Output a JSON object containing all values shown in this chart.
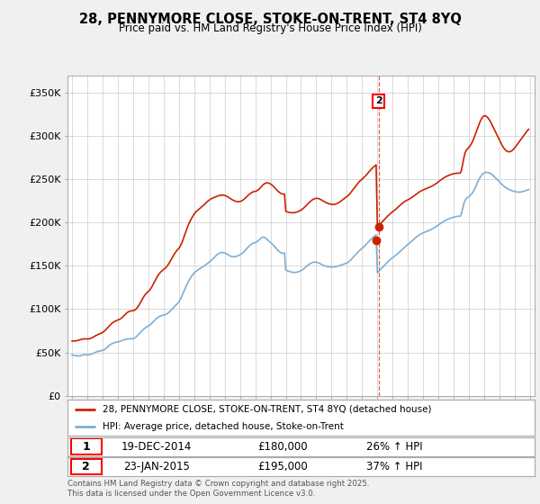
{
  "title": "28, PENNYMORE CLOSE, STOKE-ON-TRENT, ST4 8YQ",
  "subtitle": "Price paid vs. HM Land Registry's House Price Index (HPI)",
  "background_color": "#f0f0f0",
  "plot_bg_color": "#ffffff",
  "grid_color": "#cccccc",
  "hpi_color": "#7eaed4",
  "price_color": "#cc2200",
  "marker_color": "#cc2200",
  "dashed_color": "#cc2200",
  "ylim": [
    0,
    370000
  ],
  "yticks": [
    0,
    50000,
    100000,
    150000,
    200000,
    250000,
    300000,
    350000
  ],
  "ytick_labels": [
    "£0",
    "£50K",
    "£100K",
    "£150K",
    "£200K",
    "£250K",
    "£300K",
    "£350K"
  ],
  "transaction1": {
    "date": "19-DEC-2014",
    "price": 180000,
    "hpi_pct": "26%",
    "label": "1"
  },
  "transaction2": {
    "date": "23-JAN-2015",
    "price": 195000,
    "hpi_pct": "37%",
    "label": "2"
  },
  "legend_entry1": "28, PENNYMORE CLOSE, STOKE-ON-TRENT, ST4 8YQ (detached house)",
  "legend_entry2": "HPI: Average price, detached house, Stoke-on-Trent",
  "footer": "Contains HM Land Registry data © Crown copyright and database right 2025.\nThis data is licensed under the Open Government Licence v3.0.",
  "hpi_data_x": [
    1995.0,
    1995.083,
    1995.167,
    1995.25,
    1995.333,
    1995.417,
    1995.5,
    1995.583,
    1995.667,
    1995.75,
    1995.833,
    1995.917,
    1996.0,
    1996.083,
    1996.167,
    1996.25,
    1996.333,
    1996.417,
    1996.5,
    1996.583,
    1996.667,
    1996.75,
    1996.833,
    1996.917,
    1997.0,
    1997.083,
    1997.167,
    1997.25,
    1997.333,
    1997.417,
    1997.5,
    1997.583,
    1997.667,
    1997.75,
    1997.833,
    1997.917,
    1998.0,
    1998.083,
    1998.167,
    1998.25,
    1998.333,
    1998.417,
    1998.5,
    1998.583,
    1998.667,
    1998.75,
    1998.833,
    1998.917,
    1999.0,
    1999.083,
    1999.167,
    1999.25,
    1999.333,
    1999.417,
    1999.5,
    1999.583,
    1999.667,
    1999.75,
    1999.833,
    1999.917,
    2000.0,
    2000.083,
    2000.167,
    2000.25,
    2000.333,
    2000.417,
    2000.5,
    2000.583,
    2000.667,
    2000.75,
    2000.833,
    2000.917,
    2001.0,
    2001.083,
    2001.167,
    2001.25,
    2001.333,
    2001.417,
    2001.5,
    2001.583,
    2001.667,
    2001.75,
    2001.833,
    2001.917,
    2002.0,
    2002.083,
    2002.167,
    2002.25,
    2002.333,
    2002.417,
    2002.5,
    2002.583,
    2002.667,
    2002.75,
    2002.833,
    2002.917,
    2003.0,
    2003.083,
    2003.167,
    2003.25,
    2003.333,
    2003.417,
    2003.5,
    2003.583,
    2003.667,
    2003.75,
    2003.833,
    2003.917,
    2004.0,
    2004.083,
    2004.167,
    2004.25,
    2004.333,
    2004.417,
    2004.5,
    2004.583,
    2004.667,
    2004.75,
    2004.833,
    2004.917,
    2005.0,
    2005.083,
    2005.167,
    2005.25,
    2005.333,
    2005.417,
    2005.5,
    2005.583,
    2005.667,
    2005.75,
    2005.833,
    2005.917,
    2006.0,
    2006.083,
    2006.167,
    2006.25,
    2006.333,
    2006.417,
    2006.5,
    2006.583,
    2006.667,
    2006.75,
    2006.833,
    2006.917,
    2007.0,
    2007.083,
    2007.167,
    2007.25,
    2007.333,
    2007.417,
    2007.5,
    2007.583,
    2007.667,
    2007.75,
    2007.833,
    2007.917,
    2008.0,
    2008.083,
    2008.167,
    2008.25,
    2008.333,
    2008.417,
    2008.5,
    2008.583,
    2008.667,
    2008.75,
    2008.833,
    2008.917,
    2009.0,
    2009.083,
    2009.167,
    2009.25,
    2009.333,
    2009.417,
    2009.5,
    2009.583,
    2009.667,
    2009.75,
    2009.833,
    2009.917,
    2010.0,
    2010.083,
    2010.167,
    2010.25,
    2010.333,
    2010.417,
    2010.5,
    2010.583,
    2010.667,
    2010.75,
    2010.833,
    2010.917,
    2011.0,
    2011.083,
    2011.167,
    2011.25,
    2011.333,
    2011.417,
    2011.5,
    2011.583,
    2011.667,
    2011.75,
    2011.833,
    2011.917,
    2012.0,
    2012.083,
    2012.167,
    2012.25,
    2012.333,
    2012.417,
    2012.5,
    2012.583,
    2012.667,
    2012.75,
    2012.833,
    2012.917,
    2013.0,
    2013.083,
    2013.167,
    2013.25,
    2013.333,
    2013.417,
    2013.5,
    2013.583,
    2013.667,
    2013.75,
    2013.833,
    2013.917,
    2014.0,
    2014.083,
    2014.167,
    2014.25,
    2014.333,
    2014.417,
    2014.5,
    2014.583,
    2014.667,
    2014.75,
    2014.833,
    2014.917,
    2015.0,
    2015.083,
    2015.167,
    2015.25,
    2015.333,
    2015.417,
    2015.5,
    2015.583,
    2015.667,
    2015.75,
    2015.833,
    2015.917,
    2016.0,
    2016.083,
    2016.167,
    2016.25,
    2016.333,
    2016.417,
    2016.5,
    2016.583,
    2016.667,
    2016.75,
    2016.833,
    2016.917,
    2017.0,
    2017.083,
    2017.167,
    2017.25,
    2017.333,
    2017.417,
    2017.5,
    2017.583,
    2017.667,
    2017.75,
    2017.833,
    2017.917,
    2018.0,
    2018.083,
    2018.167,
    2018.25,
    2018.333,
    2018.417,
    2018.5,
    2018.583,
    2018.667,
    2018.75,
    2018.833,
    2018.917,
    2019.0,
    2019.083,
    2019.167,
    2019.25,
    2019.333,
    2019.417,
    2019.5,
    2019.583,
    2019.667,
    2019.75,
    2019.833,
    2019.917,
    2020.0,
    2020.083,
    2020.167,
    2020.25,
    2020.333,
    2020.417,
    2020.5,
    2020.583,
    2020.667,
    2020.75,
    2020.833,
    2020.917,
    2021.0,
    2021.083,
    2021.167,
    2021.25,
    2021.333,
    2021.417,
    2021.5,
    2021.583,
    2021.667,
    2021.75,
    2021.833,
    2021.917,
    2022.0,
    2022.083,
    2022.167,
    2022.25,
    2022.333,
    2022.417,
    2022.5,
    2022.583,
    2022.667,
    2022.75,
    2022.833,
    2022.917,
    2023.0,
    2023.083,
    2023.167,
    2023.25,
    2023.333,
    2023.417,
    2023.5,
    2023.583,
    2023.667,
    2023.75,
    2023.833,
    2023.917,
    2024.0,
    2024.083,
    2024.167,
    2024.25,
    2024.333,
    2024.417,
    2024.5,
    2024.583,
    2024.667,
    2024.75,
    2024.833,
    2024.917
  ],
  "hpi_data_y": [
    47200,
    46800,
    46300,
    46100,
    46000,
    45900,
    46100,
    46400,
    46800,
    47200,
    47600,
    47300,
    47000,
    47200,
    47500,
    48000,
    48500,
    49100,
    49800,
    50500,
    51000,
    51400,
    51700,
    51900,
    52200,
    52900,
    53800,
    55000,
    56300,
    57800,
    58900,
    59800,
    60500,
    61100,
    61500,
    61800,
    62100,
    62500,
    63000,
    63600,
    64200,
    64700,
    65100,
    65400,
    65600,
    65700,
    65800,
    65800,
    65900,
    66500,
    67500,
    68900,
    70400,
    72000,
    73600,
    75100,
    76500,
    77800,
    78900,
    79800,
    80500,
    81500,
    82700,
    84200,
    85800,
    87300,
    88700,
    89900,
    90900,
    91700,
    92300,
    92700,
    93000,
    93400,
    94000,
    95000,
    96200,
    97600,
    99100,
    100700,
    102200,
    103700,
    105200,
    106800,
    108500,
    111000,
    114000,
    117500,
    121000,
    124500,
    127800,
    130800,
    133500,
    136000,
    138200,
    140100,
    141700,
    143100,
    144300,
    145400,
    146400,
    147300,
    148200,
    149100,
    150100,
    151200,
    152300,
    153400,
    154500,
    155800,
    157200,
    158700,
    160200,
    161600,
    163000,
    164100,
    164900,
    165400,
    165600,
    165400,
    165000,
    164300,
    163500,
    162500,
    161600,
    161000,
    160600,
    160500,
    160600,
    161000,
    161500,
    162100,
    162800,
    163700,
    164900,
    166300,
    167900,
    169600,
    171200,
    172700,
    174000,
    175100,
    176000,
    176600,
    177000,
    177700,
    178700,
    180000,
    181500,
    182700,
    183300,
    183200,
    182400,
    181100,
    179600,
    178200,
    177000,
    175700,
    174300,
    172700,
    171000,
    169300,
    167700,
    166300,
    165300,
    164700,
    164600,
    165000,
    145000,
    144500,
    144000,
    143500,
    143000,
    142700,
    142500,
    142400,
    142500,
    142800,
    143200,
    143800,
    144500,
    145400,
    146500,
    147800,
    149100,
    150300,
    151500,
    152500,
    153300,
    153900,
    154300,
    154400,
    154300,
    153900,
    153300,
    152500,
    151700,
    151000,
    150400,
    149900,
    149500,
    149200,
    149000,
    148800,
    148700,
    148700,
    148800,
    149000,
    149300,
    149700,
    150200,
    150700,
    151200,
    151700,
    152200,
    152700,
    153300,
    154200,
    155400,
    156800,
    158400,
    160000,
    161700,
    163300,
    164900,
    166400,
    167800,
    169100,
    170300,
    171600,
    173000,
    174600,
    176200,
    177800,
    179400,
    180900,
    182300,
    183600,
    184800,
    185900,
    142000,
    143500,
    145000,
    146600,
    148200,
    149800,
    151400,
    153000,
    154500,
    155900,
    157200,
    158400,
    159500,
    160600,
    161700,
    162900,
    164100,
    165400,
    166800,
    168200,
    169600,
    171000,
    172300,
    173600,
    174800,
    176100,
    177400,
    178700,
    180000,
    181300,
    182500,
    183700,
    184800,
    185800,
    186700,
    187500,
    188200,
    188800,
    189400,
    190000,
    190600,
    191200,
    191900,
    192600,
    193400,
    194300,
    195300,
    196300,
    197400,
    198500,
    199500,
    200500,
    201400,
    202200,
    203000,
    203700,
    204300,
    204900,
    205400,
    205900,
    206400,
    206800,
    207100,
    207300,
    207400,
    207400,
    210000,
    216000,
    222000,
    226000,
    228000,
    229000,
    230000,
    231500,
    233000,
    235000,
    237500,
    240500,
    244000,
    247500,
    250500,
    253000,
    255000,
    256500,
    257500,
    258000,
    258200,
    258000,
    257500,
    256800,
    255800,
    254500,
    253000,
    251500,
    250000,
    248500,
    247000,
    245500,
    244000,
    242700,
    241500,
    240400,
    239500,
    238700,
    238000,
    237400,
    236800,
    236300,
    235900,
    235600,
    235400,
    235300,
    235300,
    235500,
    235800,
    236200,
    236700,
    237200,
    237700,
    238200
  ],
  "price_data_x": [
    1995.0,
    1995.083,
    1995.167,
    1995.25,
    1995.333,
    1995.417,
    1995.5,
    1995.583,
    1995.667,
    1995.75,
    1995.833,
    1995.917,
    1996.0,
    1996.083,
    1996.167,
    1996.25,
    1996.333,
    1996.417,
    1996.5,
    1996.583,
    1996.667,
    1996.75,
    1996.833,
    1996.917,
    1997.0,
    1997.083,
    1997.167,
    1997.25,
    1997.333,
    1997.417,
    1997.5,
    1997.583,
    1997.667,
    1997.75,
    1997.833,
    1997.917,
    1998.0,
    1998.083,
    1998.167,
    1998.25,
    1998.333,
    1998.417,
    1998.5,
    1998.583,
    1998.667,
    1998.75,
    1998.833,
    1998.917,
    1999.0,
    1999.083,
    1999.167,
    1999.25,
    1999.333,
    1999.417,
    1999.5,
    1999.583,
    1999.667,
    1999.75,
    1999.833,
    1999.917,
    2000.0,
    2000.083,
    2000.167,
    2000.25,
    2000.333,
    2000.417,
    2000.5,
    2000.583,
    2000.667,
    2000.75,
    2000.833,
    2000.917,
    2001.0,
    2001.083,
    2001.167,
    2001.25,
    2001.333,
    2001.417,
    2001.5,
    2001.583,
    2001.667,
    2001.75,
    2001.833,
    2001.917,
    2002.0,
    2002.083,
    2002.167,
    2002.25,
    2002.333,
    2002.417,
    2002.5,
    2002.583,
    2002.667,
    2002.75,
    2002.833,
    2002.917,
    2003.0,
    2003.083,
    2003.167,
    2003.25,
    2003.333,
    2003.417,
    2003.5,
    2003.583,
    2003.667,
    2003.75,
    2003.833,
    2003.917,
    2004.0,
    2004.083,
    2004.167,
    2004.25,
    2004.333,
    2004.417,
    2004.5,
    2004.583,
    2004.667,
    2004.75,
    2004.833,
    2004.917,
    2005.0,
    2005.083,
    2005.167,
    2005.25,
    2005.333,
    2005.417,
    2005.5,
    2005.583,
    2005.667,
    2005.75,
    2005.833,
    2005.917,
    2006.0,
    2006.083,
    2006.167,
    2006.25,
    2006.333,
    2006.417,
    2006.5,
    2006.583,
    2006.667,
    2006.75,
    2006.833,
    2006.917,
    2007.0,
    2007.083,
    2007.167,
    2007.25,
    2007.333,
    2007.417,
    2007.5,
    2007.583,
    2007.667,
    2007.75,
    2007.833,
    2007.917,
    2008.0,
    2008.083,
    2008.167,
    2008.25,
    2008.333,
    2008.417,
    2008.5,
    2008.583,
    2008.667,
    2008.75,
    2008.833,
    2008.917,
    2009.0,
    2009.083,
    2009.167,
    2009.25,
    2009.333,
    2009.417,
    2009.5,
    2009.583,
    2009.667,
    2009.75,
    2009.833,
    2009.917,
    2010.0,
    2010.083,
    2010.167,
    2010.25,
    2010.333,
    2010.417,
    2010.5,
    2010.583,
    2010.667,
    2010.75,
    2010.833,
    2010.917,
    2011.0,
    2011.083,
    2011.167,
    2011.25,
    2011.333,
    2011.417,
    2011.5,
    2011.583,
    2011.667,
    2011.75,
    2011.833,
    2011.917,
    2012.0,
    2012.083,
    2012.167,
    2012.25,
    2012.333,
    2012.417,
    2012.5,
    2012.583,
    2012.667,
    2012.75,
    2012.833,
    2012.917,
    2013.0,
    2013.083,
    2013.167,
    2013.25,
    2013.333,
    2013.417,
    2013.5,
    2013.583,
    2013.667,
    2013.75,
    2013.833,
    2013.917,
    2014.0,
    2014.083,
    2014.167,
    2014.25,
    2014.333,
    2014.417,
    2014.5,
    2014.583,
    2014.667,
    2014.75,
    2014.833,
    2014.917,
    2015.0,
    2015.083,
    2015.167,
    2015.25,
    2015.333,
    2015.417,
    2015.5,
    2015.583,
    2015.667,
    2015.75,
    2015.833,
    2015.917,
    2016.0,
    2016.083,
    2016.167,
    2016.25,
    2016.333,
    2016.417,
    2016.5,
    2016.583,
    2016.667,
    2016.75,
    2016.833,
    2016.917,
    2017.0,
    2017.083,
    2017.167,
    2017.25,
    2017.333,
    2017.417,
    2017.5,
    2017.583,
    2017.667,
    2017.75,
    2017.833,
    2017.917,
    2018.0,
    2018.083,
    2018.167,
    2018.25,
    2018.333,
    2018.417,
    2018.5,
    2018.583,
    2018.667,
    2018.75,
    2018.833,
    2018.917,
    2019.0,
    2019.083,
    2019.167,
    2019.25,
    2019.333,
    2019.417,
    2019.5,
    2019.583,
    2019.667,
    2019.75,
    2019.833,
    2019.917,
    2020.0,
    2020.083,
    2020.167,
    2020.25,
    2020.333,
    2020.417,
    2020.5,
    2020.583,
    2020.667,
    2020.75,
    2020.833,
    2020.917,
    2021.0,
    2021.083,
    2021.167,
    2021.25,
    2021.333,
    2021.417,
    2021.5,
    2021.583,
    2021.667,
    2021.75,
    2021.833,
    2021.917,
    2022.0,
    2022.083,
    2022.167,
    2022.25,
    2022.333,
    2022.417,
    2022.5,
    2022.583,
    2022.667,
    2022.75,
    2022.833,
    2022.917,
    2023.0,
    2023.083,
    2023.167,
    2023.25,
    2023.333,
    2023.417,
    2023.5,
    2023.583,
    2023.667,
    2023.75,
    2023.833,
    2023.917,
    2024.0,
    2024.083,
    2024.167,
    2024.25,
    2024.333,
    2024.417,
    2024.5,
    2024.583,
    2024.667,
    2024.75,
    2024.833,
    2024.917
  ],
  "price_data_y": [
    63000,
    63200,
    63100,
    63300,
    63700,
    64000,
    64500,
    65000,
    65300,
    65500,
    65700,
    65600,
    65500,
    65600,
    65900,
    66400,
    67100,
    68000,
    68900,
    69700,
    70400,
    71000,
    71600,
    72300,
    73100,
    74100,
    75400,
    76900,
    78500,
    80200,
    81800,
    83200,
    84400,
    85400,
    86200,
    86800,
    87300,
    87900,
    88700,
    89800,
    91200,
    92700,
    94200,
    95600,
    96700,
    97500,
    97900,
    98100,
    98200,
    98700,
    99700,
    101300,
    103300,
    105700,
    108300,
    111000,
    113600,
    115800,
    117700,
    119200,
    120500,
    122100,
    124100,
    126600,
    129400,
    132400,
    135200,
    137700,
    139900,
    141800,
    143400,
    144700,
    145800,
    147000,
    148500,
    150300,
    152500,
    155000,
    157600,
    160300,
    162800,
    165100,
    167100,
    168900,
    170500,
    172700,
    175700,
    179400,
    183600,
    188000,
    192200,
    196000,
    199400,
    202400,
    205200,
    207700,
    209900,
    211800,
    213400,
    214700,
    215900,
    217100,
    218400,
    219700,
    221100,
    222500,
    223900,
    225200,
    226300,
    227300,
    228100,
    228800,
    229400,
    230000,
    230600,
    231100,
    231500,
    231800,
    231900,
    231800,
    231500,
    230900,
    230200,
    229300,
    228300,
    227300,
    226400,
    225600,
    224900,
    224500,
    224200,
    224200,
    224500,
    225000,
    225800,
    226900,
    228200,
    229600,
    231000,
    232400,
    233600,
    234600,
    235400,
    235900,
    236200,
    236700,
    237500,
    238700,
    240200,
    241900,
    243500,
    244800,
    245600,
    246000,
    245900,
    245500,
    244700,
    243600,
    242300,
    240800,
    239200,
    237700,
    236200,
    235000,
    234000,
    233300,
    233000,
    233100,
    213000,
    212500,
    212000,
    211700,
    211500,
    211400,
    211400,
    211600,
    211900,
    212400,
    213000,
    213700,
    214600,
    215600,
    216800,
    218200,
    219700,
    221300,
    222800,
    224200,
    225400,
    226500,
    227300,
    227900,
    228100,
    228100,
    227700,
    227100,
    226300,
    225400,
    224500,
    223700,
    222900,
    222300,
    221800,
    221400,
    221100,
    221000,
    221100,
    221400,
    221900,
    222600,
    223500,
    224500,
    225600,
    226700,
    227800,
    228900,
    230100,
    231400,
    232900,
    234600,
    236500,
    238400,
    240400,
    242400,
    244300,
    246100,
    247700,
    249100,
    250400,
    251700,
    253100,
    254600,
    256300,
    258000,
    259700,
    261400,
    262900,
    264400,
    265600,
    266800,
    195000,
    196500,
    198000,
    199600,
    201200,
    202800,
    204400,
    206000,
    207500,
    208900,
    210200,
    211400,
    212500,
    213700,
    214900,
    216200,
    217600,
    219000,
    220400,
    221700,
    222900,
    224000,
    224900,
    225700,
    226400,
    227200,
    228100,
    229100,
    230100,
    231200,
    232300,
    233400,
    234500,
    235500,
    236400,
    237200,
    237900,
    238500,
    239100,
    239700,
    240300,
    240900,
    241600,
    242300,
    243100,
    244000,
    245000,
    246100,
    247200,
    248400,
    249500,
    250600,
    251600,
    252500,
    253300,
    254000,
    254600,
    255200,
    255700,
    256200,
    256600,
    256900,
    257100,
    257200,
    257200,
    257100,
    260000,
    267000,
    275000,
    281000,
    284000,
    285500,
    287000,
    289000,
    291500,
    294500,
    298000,
    302000,
    306000,
    310000,
    314000,
    317500,
    320500,
    322500,
    323500,
    323500,
    322500,
    321000,
    319000,
    316500,
    313500,
    310500,
    307500,
    304500,
    301500,
    298500,
    295500,
    292500,
    289500,
    287000,
    285000,
    283500,
    282500,
    282000,
    282000,
    282500,
    283500,
    285000,
    286500,
    288500,
    290500,
    292500,
    294500,
    296500,
    298500,
    300500,
    302500,
    304500,
    306500,
    308000
  ],
  "sale1_x": 2014.917,
  "sale1_y": 180000,
  "sale2_x": 2015.083,
  "sale2_y": 195000,
  "xmin": 1994.7,
  "xmax": 2025.3
}
